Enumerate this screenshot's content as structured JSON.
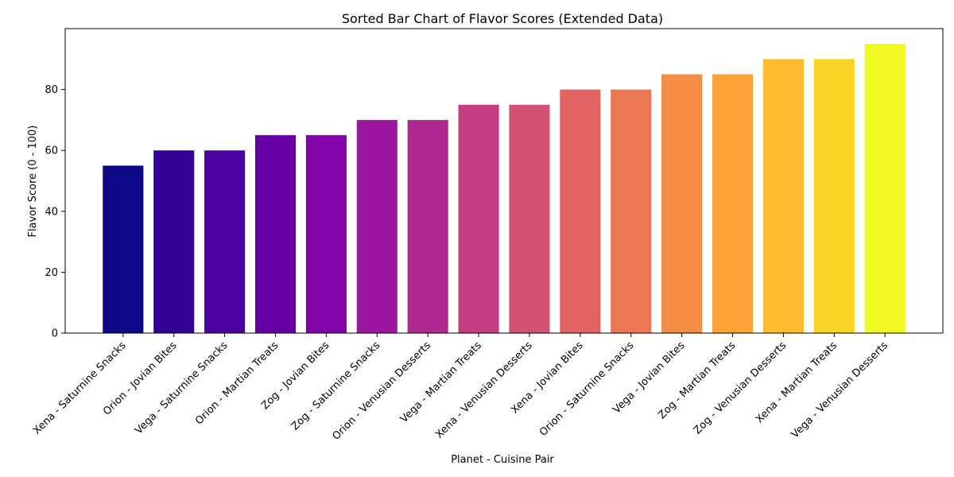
{
  "chart_data": {
    "type": "bar",
    "title": "Sorted Bar Chart of Flavor Scores (Extended Data)",
    "xlabel": "Planet - Cuisine Pair",
    "ylabel": "Flavor Score (0 - 100)",
    "ylim": [
      0,
      100
    ],
    "yticks": [
      0,
      20,
      40,
      60,
      80
    ],
    "grid": false,
    "legend": "none",
    "categories": [
      "Xena - Saturnine Snacks",
      "Orion - Jovian Bites",
      "Vega - Saturnine Snacks",
      "Orion - Martian Treats",
      "Zog - Jovian Bites",
      "Zog - Saturnine Snacks",
      "Orion - Venusian Desserts",
      "Vega - Martian Treats",
      "Xena - Venusian Desserts",
      "Xena - Jovian Bites",
      "Orion - Saturnine Snacks",
      "Vega - Jovian Bites",
      "Zog - Martian Treats",
      "Zog - Venusian Desserts",
      "Xena - Martian Treats",
      "Vega - Venusian Desserts"
    ],
    "values": [
      55,
      60,
      60,
      65,
      65,
      70,
      70,
      75,
      75,
      80,
      80,
      85,
      85,
      90,
      90,
      95
    ],
    "colors": [
      "#0d0887",
      "#330597",
      "#4c02a1",
      "#6500a7",
      "#8004a8",
      "#9b179e",
      "#b02991",
      "#c33d80",
      "#d35171",
      "#e16462",
      "#ec7853",
      "#f58c46",
      "#fba238",
      "#fdbb2d",
      "#f8d524",
      "#f0f921"
    ]
  }
}
